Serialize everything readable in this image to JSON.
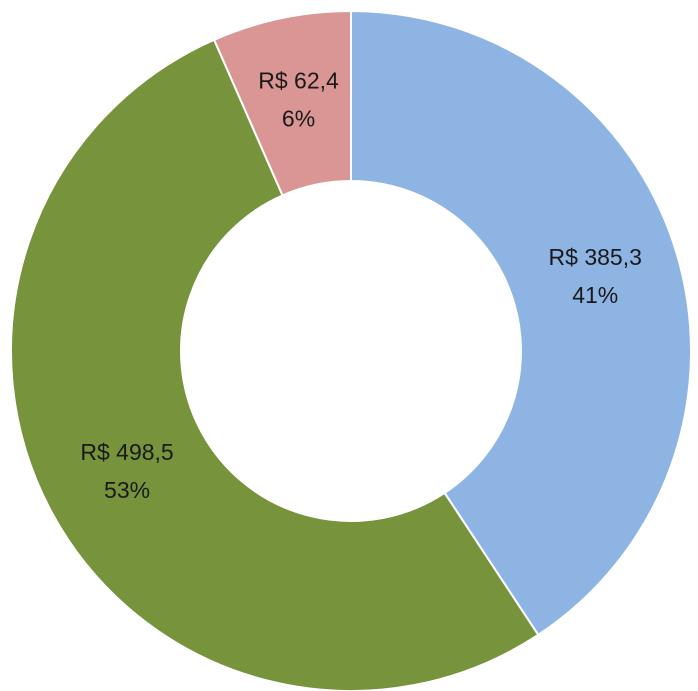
{
  "chart_data": {
    "type": "donut",
    "categories": [
      null,
      null,
      null
    ],
    "values": [
      385.3,
      498.5,
      62.4
    ],
    "value_labels": [
      "R$ 385,3",
      "R$ 498,5",
      "R$ 62,4"
    ],
    "percents": [
      41,
      53,
      6
    ],
    "percent_labels": [
      "41%",
      "53%",
      "6%"
    ],
    "colors": [
      "#8eb4e3",
      "#77933c",
      "#d99694"
    ]
  }
}
